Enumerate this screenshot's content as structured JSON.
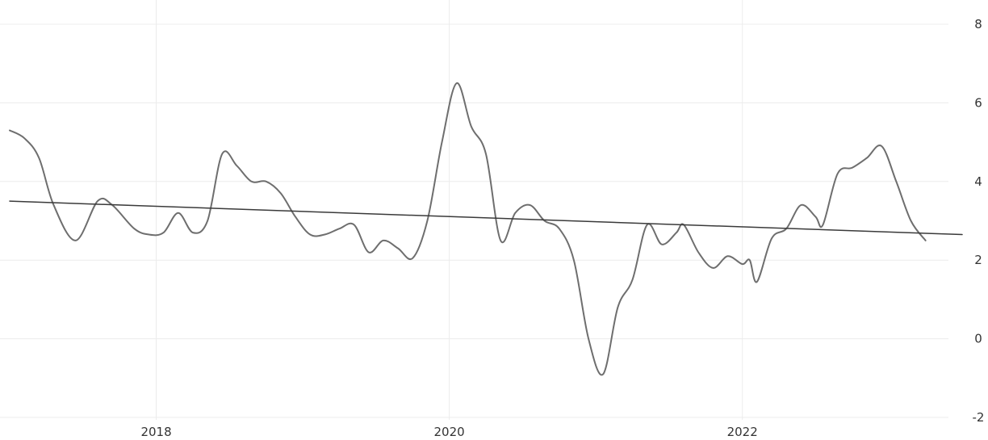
{
  "chart_data": {
    "type": "line",
    "title": "",
    "xlabel": "",
    "ylabel": "",
    "x_ticks": [
      {
        "label": "2018",
        "value": 2018.0
      },
      {
        "label": "2020",
        "value": 2020.0
      },
      {
        "label": "2022",
        "value": 2022.0
      }
    ],
    "y_ticks": [
      {
        "label": "8",
        "value": 8
      },
      {
        "label": "6",
        "value": 6
      },
      {
        "label": "4",
        "value": 4
      },
      {
        "label": "2",
        "value": 2
      },
      {
        "label": "0",
        "value": 0
      },
      {
        "label": "-2",
        "value": -2
      }
    ],
    "xlim": [
      2017.0,
      2023.5
    ],
    "ylim": [
      -2,
      8
    ],
    "y_axis_side": "right",
    "grid": true,
    "series": [
      {
        "color": "#6e6e6e",
        "points": [
          [
            2017.0,
            5.3
          ],
          [
            2017.1,
            5.1
          ],
          [
            2017.2,
            4.6
          ],
          [
            2017.3,
            3.4
          ],
          [
            2017.45,
            2.5
          ],
          [
            2017.6,
            3.5
          ],
          [
            2017.7,
            3.4
          ],
          [
            2017.85,
            2.8
          ],
          [
            2017.95,
            2.65
          ],
          [
            2018.05,
            2.7
          ],
          [
            2018.15,
            3.2
          ],
          [
            2018.25,
            2.7
          ],
          [
            2018.35,
            3.0
          ],
          [
            2018.45,
            4.7
          ],
          [
            2018.55,
            4.4
          ],
          [
            2018.65,
            4.0
          ],
          [
            2018.75,
            4.0
          ],
          [
            2018.85,
            3.7
          ],
          [
            2018.95,
            3.1
          ],
          [
            2019.05,
            2.65
          ],
          [
            2019.15,
            2.65
          ],
          [
            2019.25,
            2.8
          ],
          [
            2019.35,
            2.9
          ],
          [
            2019.45,
            2.2
          ],
          [
            2019.55,
            2.5
          ],
          [
            2019.65,
            2.3
          ],
          [
            2019.75,
            2.05
          ],
          [
            2019.85,
            3.0
          ],
          [
            2019.95,
            5.0
          ],
          [
            2020.05,
            6.5
          ],
          [
            2020.15,
            5.4
          ],
          [
            2020.25,
            4.7
          ],
          [
            2020.35,
            2.5
          ],
          [
            2020.45,
            3.2
          ],
          [
            2020.55,
            3.4
          ],
          [
            2020.65,
            3.0
          ],
          [
            2020.75,
            2.8
          ],
          [
            2020.85,
            2.0
          ],
          [
            2020.95,
            0.0
          ],
          [
            2021.05,
            -0.9
          ],
          [
            2021.15,
            0.8
          ],
          [
            2021.25,
            1.5
          ],
          [
            2021.35,
            2.9
          ],
          [
            2021.45,
            2.4
          ],
          [
            2021.55,
            2.7
          ],
          [
            2021.6,
            2.9
          ],
          [
            2021.7,
            2.2
          ],
          [
            2021.8,
            1.8
          ],
          [
            2021.9,
            2.1
          ],
          [
            2022.0,
            1.9
          ],
          [
            2022.05,
            2.0
          ],
          [
            2022.1,
            1.45
          ],
          [
            2022.2,
            2.55
          ],
          [
            2022.3,
            2.8
          ],
          [
            2022.4,
            3.4
          ],
          [
            2022.5,
            3.1
          ],
          [
            2022.55,
            2.9
          ],
          [
            2022.65,
            4.2
          ],
          [
            2022.75,
            4.35
          ],
          [
            2022.85,
            4.6
          ],
          [
            2022.95,
            4.9
          ],
          [
            2023.05,
            4.0
          ],
          [
            2023.15,
            3.0
          ],
          [
            2023.25,
            2.5
          ]
        ]
      },
      {
        "color": "#3a3a3a",
        "points": [
          [
            2017.0,
            3.5
          ],
          [
            2023.5,
            2.65
          ]
        ]
      }
    ]
  }
}
